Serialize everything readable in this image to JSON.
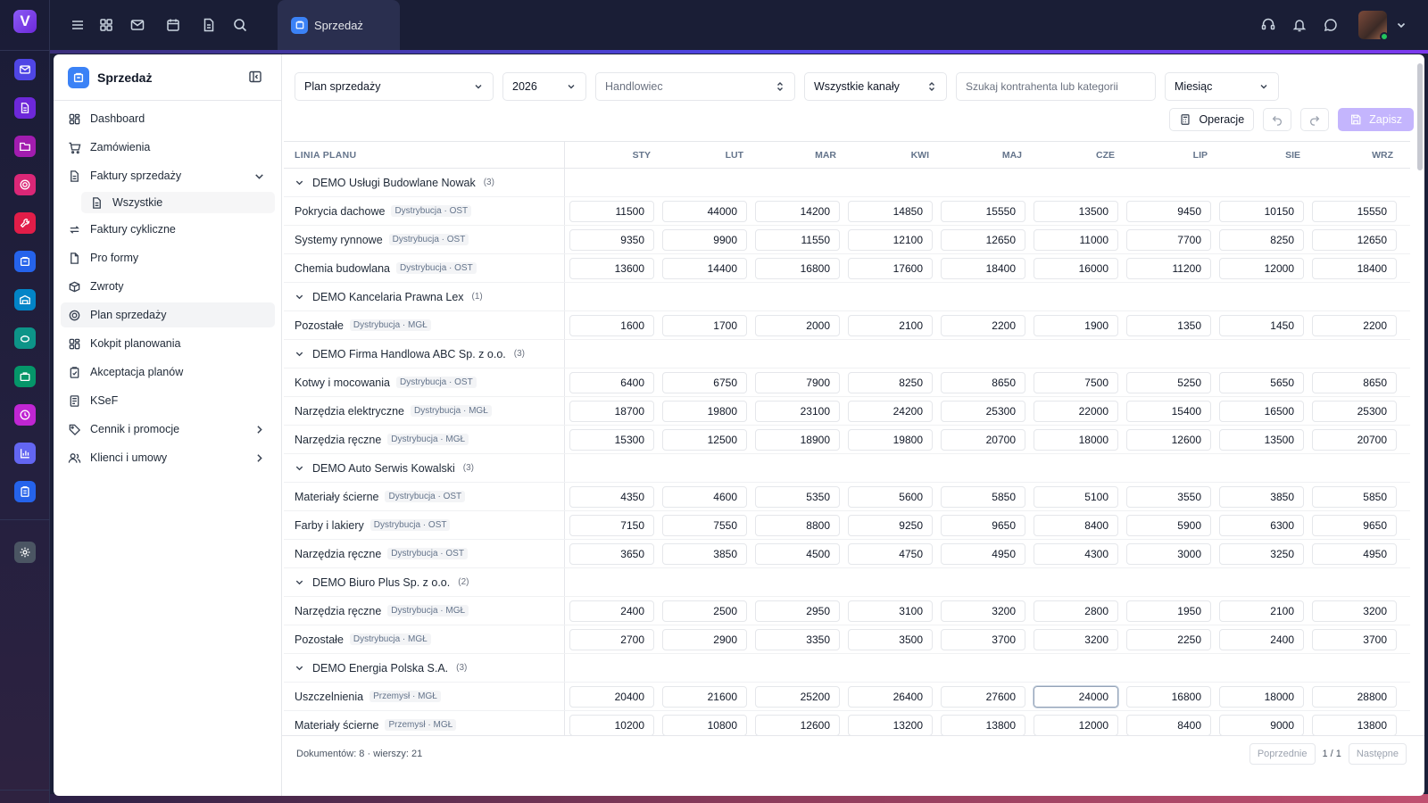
{
  "app": {
    "logo_letter": "V",
    "tab_label": "Sprzedaż"
  },
  "sidebar": {
    "title": "Sprzedaż",
    "items": [
      {
        "label": "Dashboard",
        "icon": "dashboard-icon"
      },
      {
        "label": "Zamówienia",
        "icon": "cart-icon"
      },
      {
        "label": "Faktury sprzedaży",
        "icon": "document-icon",
        "expanded": true
      },
      {
        "label": "Wszystkie",
        "icon": "document-icon",
        "sub": true
      },
      {
        "label": "Faktury cykliczne",
        "icon": "repeat-icon"
      },
      {
        "label": "Pro formy",
        "icon": "file-icon"
      },
      {
        "label": "Zwroty",
        "icon": "box-icon"
      },
      {
        "label": "Plan sprzedaży",
        "icon": "target-icon",
        "active": true
      },
      {
        "label": "Kokpit planowania",
        "icon": "dashboard-icon"
      },
      {
        "label": "Akceptacja planów",
        "icon": "clipboard-check-icon"
      },
      {
        "label": "KSeF",
        "icon": "invoice-icon"
      },
      {
        "label": "Cennik i promocje",
        "icon": "tag-icon",
        "chevron": true
      },
      {
        "label": "Klienci i umowy",
        "icon": "users-icon",
        "chevron": true
      }
    ]
  },
  "filters": {
    "plan": "Plan sprzedaży",
    "year": "2026",
    "salesperson_placeholder": "Handlowiec",
    "channels": "Wszystkie kanały",
    "search_placeholder": "Szukaj kontrahenta lub kategorii",
    "period": "Miesiąc"
  },
  "actions": {
    "operations": "Operacje",
    "save": "Zapisz"
  },
  "table": {
    "line_header": "LINIA PLANU",
    "months": [
      "STY",
      "LUT",
      "MAR",
      "KWI",
      "MAJ",
      "CZE",
      "LIP",
      "SIE",
      "WRZ"
    ],
    "rows": [
      {
        "type": "group",
        "label": "DEMO Usługi Budowlane Nowak",
        "count": "(3)"
      },
      {
        "type": "line",
        "label": "Pokrycia dachowe",
        "tag": "Dystrybucja · OST",
        "values": [
          "11500",
          "44000",
          "14200",
          "14850",
          "15550",
          "13500",
          "9450",
          "10150",
          "15550"
        ]
      },
      {
        "type": "line",
        "label": "Systemy rynnowe",
        "tag": "Dystrybucja · OST",
        "values": [
          "9350",
          "9900",
          "11550",
          "12100",
          "12650",
          "11000",
          "7700",
          "8250",
          "12650"
        ]
      },
      {
        "type": "line",
        "label": "Chemia budowlana",
        "tag": "Dystrybucja · OST",
        "values": [
          "13600",
          "14400",
          "16800",
          "17600",
          "18400",
          "16000",
          "11200",
          "12000",
          "18400"
        ]
      },
      {
        "type": "group",
        "label": "DEMO Kancelaria Prawna Lex",
        "count": "(1)"
      },
      {
        "type": "line",
        "label": "Pozostałe",
        "tag": "Dystrybucja · MGŁ",
        "values": [
          "1600",
          "1700",
          "2000",
          "2100",
          "2200",
          "1900",
          "1350",
          "1450",
          "2200"
        ]
      },
      {
        "type": "group",
        "label": "DEMO Firma Handlowa ABC Sp. z o.o.",
        "count": "(3)"
      },
      {
        "type": "line",
        "label": "Kotwy i mocowania",
        "tag": "Dystrybucja · OST",
        "values": [
          "6400",
          "6750",
          "7900",
          "8250",
          "8650",
          "7500",
          "5250",
          "5650",
          "8650"
        ]
      },
      {
        "type": "line",
        "label": "Narzędzia elektryczne",
        "tag": "Dystrybucja · MGŁ",
        "values": [
          "18700",
          "19800",
          "23100",
          "24200",
          "25300",
          "22000",
          "15400",
          "16500",
          "25300"
        ]
      },
      {
        "type": "line",
        "label": "Narzędzia ręczne",
        "tag": "Dystrybucja · MGŁ",
        "values": [
          "15300",
          "12500",
          "18900",
          "19800",
          "20700",
          "18000",
          "12600",
          "13500",
          "20700"
        ]
      },
      {
        "type": "group",
        "label": "DEMO Auto Serwis Kowalski",
        "count": "(3)"
      },
      {
        "type": "line",
        "label": "Materiały ścierne",
        "tag": "Dystrybucja · OST",
        "values": [
          "4350",
          "4600",
          "5350",
          "5600",
          "5850",
          "5100",
          "3550",
          "3850",
          "5850"
        ]
      },
      {
        "type": "line",
        "label": "Farby i lakiery",
        "tag": "Dystrybucja · OST",
        "values": [
          "7150",
          "7550",
          "8800",
          "9250",
          "9650",
          "8400",
          "5900",
          "6300",
          "9650"
        ]
      },
      {
        "type": "line",
        "label": "Narzędzia ręczne",
        "tag": "Dystrybucja · OST",
        "values": [
          "3650",
          "3850",
          "4500",
          "4750",
          "4950",
          "4300",
          "3000",
          "3250",
          "4950"
        ]
      },
      {
        "type": "group",
        "label": "DEMO Biuro Plus Sp. z o.o.",
        "count": "(2)"
      },
      {
        "type": "line",
        "label": "Narzędzia ręczne",
        "tag": "Dystrybucja · MGŁ",
        "values": [
          "2400",
          "2500",
          "2950",
          "3100",
          "3200",
          "2800",
          "1950",
          "2100",
          "3200"
        ]
      },
      {
        "type": "line",
        "label": "Pozostałe",
        "tag": "Dystrybucja · MGŁ",
        "values": [
          "2700",
          "2900",
          "3350",
          "3500",
          "3700",
          "3200",
          "2250",
          "2400",
          "3700"
        ]
      },
      {
        "type": "group",
        "label": "DEMO Energia Polska S.A.",
        "count": "(3)"
      },
      {
        "type": "line",
        "label": "Uszczelnienia",
        "tag": "Przemysł · MGŁ",
        "values": [
          "20400",
          "21600",
          "25200",
          "26400",
          "27600",
          "24000",
          "16800",
          "18000",
          "28800"
        ]
      },
      {
        "type": "line",
        "label": "Materiały ścierne",
        "tag": "Przemysł · MGŁ",
        "values": [
          "10200",
          "10800",
          "12600",
          "13200",
          "13800",
          "12000",
          "8400",
          "9000",
          "13800"
        ]
      }
    ]
  },
  "footer": {
    "summary": "Dokumentów: 8 · wierszy: 21",
    "prev": "Poprzednie",
    "page": "1 / 1",
    "next": "Następne"
  },
  "colors": {
    "accent": "#7c3aed",
    "save_button": "#c4b5fd",
    "app_icon": "#3b82f6",
    "rail_bg": "#1a1c36"
  }
}
